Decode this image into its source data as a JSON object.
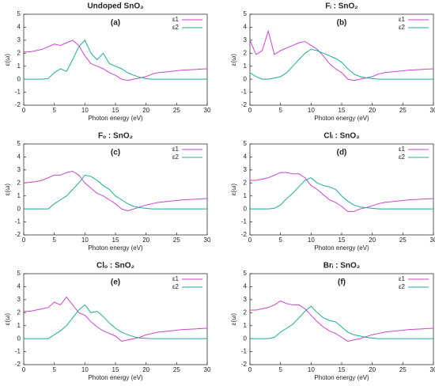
{
  "chart_data": [
    {
      "type": "line",
      "title": "Undoped SnO₂",
      "annotation": "(a)",
      "xlabel": "Photon energy (eV)",
      "ylabel": "ε(ω)",
      "xlim": [
        0,
        30
      ],
      "xticks": [
        0,
        5,
        10,
        15,
        20,
        25,
        30
      ],
      "ylim": [
        -2,
        5
      ],
      "yticks": [
        -2,
        -1,
        0,
        1,
        2,
        3,
        4,
        5
      ],
      "legend": "upper right",
      "x": [
        0,
        1,
        2,
        3,
        4,
        5,
        6,
        7,
        8,
        9,
        10,
        11,
        12,
        13,
        14,
        15,
        16,
        17,
        18,
        19,
        20,
        21,
        22,
        23,
        24,
        25,
        26,
        27,
        28,
        29,
        30
      ],
      "series": [
        {
          "name": "ε1",
          "color": "#cc44cc",
          "values": [
            2.1,
            2.1,
            2.2,
            2.3,
            2.5,
            2.7,
            2.6,
            2.8,
            3.0,
            2.6,
            1.8,
            1.2,
            1.0,
            0.8,
            0.5,
            0.3,
            0.0,
            -0.1,
            0.0,
            0.1,
            0.2,
            0.4,
            0.5,
            0.55,
            0.6,
            0.65,
            0.7,
            0.72,
            0.75,
            0.78,
            0.8
          ]
        },
        {
          "name": "ε2",
          "color": "#1aae9a",
          "values": [
            0,
            0,
            0,
            0,
            0.05,
            0.5,
            0.8,
            0.6,
            1.5,
            2.5,
            3.0,
            2.0,
            1.5,
            2.0,
            1.2,
            1.0,
            0.8,
            0.5,
            0.3,
            0.15,
            0.05,
            0,
            0,
            0,
            0,
            0,
            0,
            0,
            0,
            0,
            0
          ]
        }
      ]
    },
    {
      "type": "line",
      "title": "Fᵢ : SnO₂",
      "annotation": "(b)",
      "xlabel": "Photon energy (eV)",
      "ylabel": "ε(ω)",
      "xlim": [
        0,
        30
      ],
      "xticks": [
        0,
        5,
        10,
        15,
        20,
        25,
        30
      ],
      "ylim": [
        -2,
        5
      ],
      "yticks": [
        -2,
        -1,
        0,
        1,
        2,
        3,
        4,
        5
      ],
      "legend": "upper right",
      "x": [
        0,
        1,
        2,
        3,
        4,
        5,
        6,
        7,
        8,
        9,
        10,
        11,
        12,
        13,
        14,
        15,
        16,
        17,
        18,
        19,
        20,
        21,
        22,
        23,
        24,
        25,
        26,
        27,
        28,
        29,
        30
      ],
      "series": [
        {
          "name": "ε1",
          "color": "#cc44cc",
          "values": [
            3.0,
            1.9,
            2.2,
            3.7,
            1.9,
            2.2,
            2.4,
            2.6,
            2.8,
            2.9,
            2.6,
            2.3,
            1.8,
            1.2,
            0.8,
            0.5,
            0.0,
            -0.1,
            0.0,
            0.1,
            0.2,
            0.4,
            0.5,
            0.55,
            0.6,
            0.65,
            0.7,
            0.72,
            0.75,
            0.78,
            0.8
          ]
        },
        {
          "name": "ε2",
          "color": "#1aae9a",
          "values": [
            0.5,
            0.2,
            0,
            0,
            0.1,
            0.2,
            0.5,
            1.0,
            1.5,
            2.0,
            2.3,
            2.2,
            2.0,
            1.8,
            1.6,
            1.3,
            0.8,
            0.4,
            0.2,
            0.1,
            0.05,
            0,
            0,
            0,
            0,
            0,
            0,
            0,
            0,
            0,
            0
          ]
        }
      ]
    },
    {
      "type": "line",
      "title": "Fₒ : SnO₂",
      "annotation": "(c)",
      "xlabel": "Photon energy (eV)",
      "ylabel": "ε(ω)",
      "xlim": [
        0,
        30
      ],
      "xticks": [
        0,
        5,
        10,
        15,
        20,
        25,
        30
      ],
      "ylim": [
        -2,
        5
      ],
      "yticks": [
        -2,
        -1,
        0,
        1,
        2,
        3,
        4,
        5
      ],
      "legend": "upper right",
      "x": [
        0,
        1,
        2,
        3,
        4,
        5,
        6,
        7,
        8,
        9,
        10,
        11,
        12,
        13,
        14,
        15,
        16,
        17,
        18,
        19,
        20,
        21,
        22,
        23,
        24,
        25,
        26,
        27,
        28,
        29,
        30
      ],
      "series": [
        {
          "name": "ε1",
          "color": "#cc44cc",
          "values": [
            2.0,
            2.05,
            2.1,
            2.2,
            2.4,
            2.6,
            2.6,
            2.8,
            2.9,
            2.6,
            2.0,
            1.6,
            1.2,
            1.0,
            0.7,
            0.4,
            0.0,
            -0.15,
            0.0,
            0.15,
            0.3,
            0.4,
            0.5,
            0.55,
            0.6,
            0.65,
            0.7,
            0.72,
            0.75,
            0.78,
            0.8
          ]
        },
        {
          "name": "ε2",
          "color": "#1aae9a",
          "values": [
            0,
            0,
            0,
            0,
            0,
            0.4,
            0.7,
            1.0,
            1.5,
            2.0,
            2.6,
            2.5,
            2.2,
            1.8,
            1.5,
            1.0,
            0.7,
            0.4,
            0.2,
            0.1,
            0.05,
            0,
            0,
            0,
            0,
            0,
            0,
            0,
            0,
            0,
            0
          ]
        }
      ]
    },
    {
      "type": "line",
      "title": "Clᵢ : SnO₂",
      "annotation": "(d)",
      "xlabel": "Photon energy (eV)",
      "ylabel": "ε(ω)",
      "xlim": [
        0,
        30
      ],
      "xticks": [
        0,
        5,
        10,
        15,
        20,
        25,
        30
      ],
      "ylim": [
        -2,
        5
      ],
      "yticks": [
        -2,
        -1,
        0,
        1,
        2,
        3,
        4,
        5
      ],
      "legend": "upper right",
      "x": [
        0,
        1,
        2,
        3,
        4,
        5,
        6,
        7,
        8,
        9,
        10,
        11,
        12,
        13,
        14,
        15,
        16,
        17,
        18,
        19,
        20,
        21,
        22,
        23,
        24,
        25,
        26,
        27,
        28,
        29,
        30
      ],
      "series": [
        {
          "name": "ε1",
          "color": "#cc44cc",
          "values": [
            2.2,
            2.2,
            2.3,
            2.4,
            2.6,
            2.8,
            2.8,
            2.7,
            2.7,
            2.4,
            1.8,
            1.5,
            1.1,
            0.7,
            0.5,
            0.2,
            -0.2,
            -0.2,
            0.0,
            0.1,
            0.25,
            0.4,
            0.5,
            0.55,
            0.6,
            0.65,
            0.7,
            0.72,
            0.75,
            0.78,
            0.8
          ]
        },
        {
          "name": "ε2",
          "color": "#1aae9a",
          "values": [
            0,
            0,
            0,
            0,
            0.05,
            0.3,
            0.8,
            1.2,
            1.7,
            2.2,
            2.4,
            2.0,
            1.8,
            1.7,
            1.5,
            1.0,
            0.6,
            0.3,
            0.15,
            0.1,
            0.05,
            0,
            0,
            0,
            0,
            0,
            0,
            0,
            0,
            0,
            0
          ]
        }
      ]
    },
    {
      "type": "line",
      "title": "Clₒ : SnO₂",
      "annotation": "(e)",
      "xlabel": "Photon energy (eV)",
      "ylabel": "ε(ω)",
      "xlim": [
        0,
        30
      ],
      "xticks": [
        0,
        5,
        10,
        15,
        20,
        25,
        30
      ],
      "ylim": [
        -2,
        5
      ],
      "yticks": [
        -2,
        -1,
        0,
        1,
        2,
        3,
        4,
        5
      ],
      "legend": "upper right",
      "x": [
        0,
        1,
        2,
        3,
        4,
        5,
        6,
        7,
        8,
        9,
        10,
        11,
        12,
        13,
        14,
        15,
        16,
        17,
        18,
        19,
        20,
        21,
        22,
        23,
        24,
        25,
        26,
        27,
        28,
        29,
        30
      ],
      "series": [
        {
          "name": "ε1",
          "color": "#cc44cc",
          "values": [
            2.1,
            2.1,
            2.2,
            2.3,
            2.4,
            2.8,
            2.6,
            3.2,
            2.6,
            2.0,
            1.8,
            1.3,
            0.9,
            0.6,
            0.4,
            0.2,
            -0.2,
            -0.1,
            0.0,
            0.1,
            0.3,
            0.4,
            0.5,
            0.55,
            0.6,
            0.65,
            0.7,
            0.72,
            0.75,
            0.78,
            0.8
          ]
        },
        {
          "name": "ε2",
          "color": "#1aae9a",
          "values": [
            0,
            0,
            0,
            0,
            0,
            0.3,
            0.6,
            1.0,
            1.6,
            2.2,
            2.6,
            2.0,
            2.1,
            1.7,
            1.2,
            0.8,
            0.5,
            0.3,
            0.15,
            0.05,
            0.02,
            0,
            0,
            0,
            0,
            0,
            0,
            0,
            0,
            0,
            0
          ]
        }
      ]
    },
    {
      "type": "line",
      "title": "Brᵢ : SnO₂",
      "annotation": "(f)",
      "xlabel": "Photon energy (eV)",
      "ylabel": "ε(ω)",
      "xlim": [
        0,
        30
      ],
      "xticks": [
        0,
        5,
        10,
        15,
        20,
        25,
        30
      ],
      "ylim": [
        -2,
        5
      ],
      "yticks": [
        -2,
        -1,
        0,
        1,
        2,
        3,
        4,
        5
      ],
      "legend": "upper right",
      "x": [
        0,
        1,
        2,
        3,
        4,
        5,
        6,
        7,
        8,
        9,
        10,
        11,
        12,
        13,
        14,
        15,
        16,
        17,
        18,
        19,
        20,
        21,
        22,
        23,
        24,
        25,
        26,
        27,
        28,
        29,
        30
      ],
      "series": [
        {
          "name": "ε1",
          "color": "#cc44cc",
          "values": [
            2.2,
            2.2,
            2.3,
            2.4,
            2.6,
            2.9,
            2.7,
            2.6,
            2.6,
            2.3,
            1.8,
            1.3,
            0.9,
            0.6,
            0.4,
            0.1,
            -0.2,
            -0.1,
            0.0,
            0.15,
            0.3,
            0.4,
            0.5,
            0.55,
            0.6,
            0.65,
            0.7,
            0.72,
            0.75,
            0.78,
            0.8
          ]
        },
        {
          "name": "ε2",
          "color": "#1aae9a",
          "values": [
            0,
            0,
            0,
            0,
            0.1,
            0.5,
            0.8,
            1.1,
            1.6,
            2.1,
            2.5,
            2.0,
            1.6,
            1.4,
            1.3,
            0.9,
            0.5,
            0.3,
            0.2,
            0.1,
            0.05,
            0,
            0,
            0,
            0,
            0,
            0,
            0,
            0,
            0,
            0
          ]
        }
      ]
    }
  ]
}
